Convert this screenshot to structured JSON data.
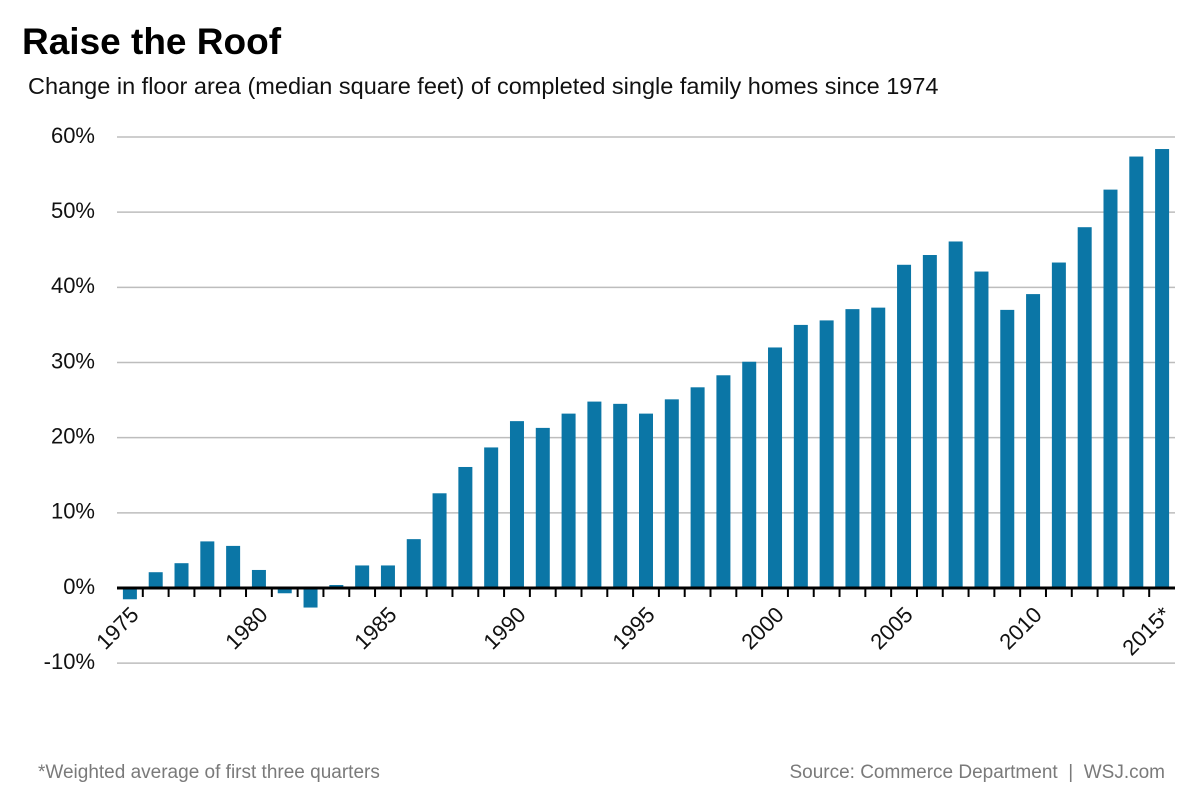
{
  "chart_data": {
    "type": "bar",
    "title": "Raise the Roof",
    "subtitle": "Change in floor area (median square feet) of completed single family homes since 1974",
    "categories": [
      "1975",
      null,
      null,
      null,
      null,
      "1980",
      null,
      null,
      null,
      null,
      "1985",
      null,
      null,
      null,
      null,
      "1990",
      null,
      null,
      null,
      null,
      "1995",
      null,
      null,
      null,
      null,
      "2000",
      null,
      null,
      null,
      null,
      "2005",
      null,
      null,
      null,
      null,
      "2010",
      null,
      null,
      null,
      null,
      "2015*"
    ],
    "values": [
      -1.5,
      2.1,
      3.3,
      6.2,
      5.6,
      2.4,
      -0.7,
      -2.6,
      0.4,
      3.0,
      3.0,
      6.5,
      12.6,
      16.1,
      18.7,
      22.2,
      21.3,
      23.2,
      24.8,
      24.5,
      23.2,
      25.1,
      26.7,
      28.3,
      30.1,
      32.0,
      35.0,
      35.6,
      37.1,
      37.3,
      43.0,
      44.3,
      46.1,
      42.1,
      37.0,
      39.1,
      43.3,
      48.0,
      53.0,
      57.4,
      58.4
    ],
    "color": "#0b76a6",
    "ylim": [
      -10,
      60
    ],
    "yticks": [
      {
        "value": -10,
        "label": "-10%"
      },
      {
        "value": 0,
        "label": "0%"
      },
      {
        "value": 10,
        "label": "10%"
      },
      {
        "value": 20,
        "label": "20%"
      },
      {
        "value": 30,
        "label": "30%"
      },
      {
        "value": 40,
        "label": "40%"
      },
      {
        "value": 50,
        "label": "50%"
      },
      {
        "value": 60,
        "label": "60%"
      }
    ],
    "grid": true,
    "footnote": "*Weighted average of first three quarters",
    "source": "Source: Commerce Department  |  WSJ.com"
  }
}
